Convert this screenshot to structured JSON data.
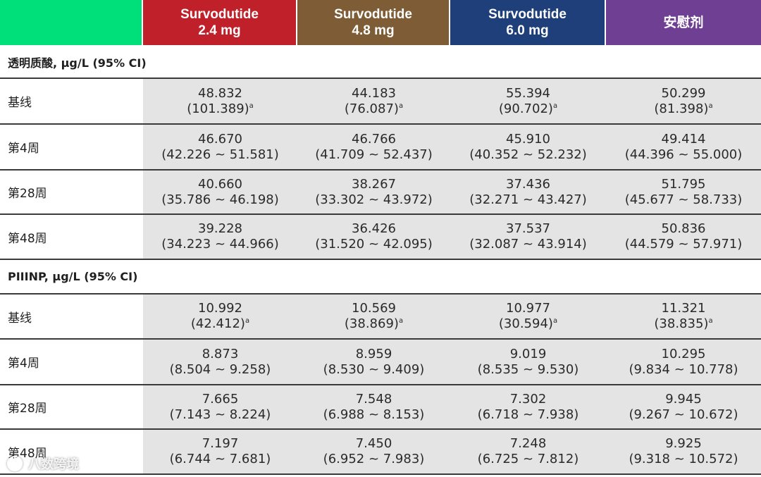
{
  "header": {
    "blank_color": "#00e07a",
    "columns": [
      {
        "line1": "Survodutide",
        "line2": "2.4 mg",
        "color": "#c0202a"
      },
      {
        "line1": "Survodutide",
        "line2": "4.8 mg",
        "color": "#7d5c36"
      },
      {
        "line1": "Survodutide",
        "line2": "6.0 mg",
        "color": "#1f3f7a"
      },
      {
        "line1": "",
        "line2": "安慰剂",
        "color": "#6e3f92"
      }
    ]
  },
  "sections": [
    {
      "title": "透明质酸, μg/L (95% CI)",
      "rows": [
        {
          "label": "基线",
          "values": [
            {
              "main": "48.832",
              "ci": "(101.389)",
              "sup": "a"
            },
            {
              "main": "44.183",
              "ci": "(76.087)",
              "sup": "a"
            },
            {
              "main": "55.394",
              "ci": "(90.702)",
              "sup": "a"
            },
            {
              "main": "50.299",
              "ci": "(81.398)",
              "sup": "a"
            }
          ]
        },
        {
          "label": "第4周",
          "values": [
            {
              "main": "46.670",
              "ci": "(42.226 ~ 51.581)",
              "sup": ""
            },
            {
              "main": "46.766",
              "ci": "(41.709 ~ 52.437)",
              "sup": ""
            },
            {
              "main": "45.910",
              "ci": "(40.352 ~ 52.232)",
              "sup": ""
            },
            {
              "main": "49.414",
              "ci": "(44.396 ~ 55.000)",
              "sup": ""
            }
          ]
        },
        {
          "label": "第28周",
          "values": [
            {
              "main": "40.660",
              "ci": "(35.786 ~ 46.198)",
              "sup": ""
            },
            {
              "main": "38.267",
              "ci": "(33.302 ~ 43.972)",
              "sup": ""
            },
            {
              "main": "37.436",
              "ci": "(32.271 ~ 43.427)",
              "sup": ""
            },
            {
              "main": "51.795",
              "ci": "(45.677 ~ 58.733)",
              "sup": ""
            }
          ]
        },
        {
          "label": "第48周",
          "values": [
            {
              "main": "39.228",
              "ci": "(34.223 ~ 44.966)",
              "sup": ""
            },
            {
              "main": "36.426",
              "ci": "(31.520 ~ 42.095)",
              "sup": ""
            },
            {
              "main": "37.537",
              "ci": "(32.087 ~ 43.914)",
              "sup": ""
            },
            {
              "main": "50.836",
              "ci": "(44.579 ~ 57.971)",
              "sup": ""
            }
          ]
        }
      ]
    },
    {
      "title": "PIIINP, μg/L (95% CI)",
      "rows": [
        {
          "label": "基线",
          "values": [
            {
              "main": "10.992",
              "ci": "(42.412)",
              "sup": "a"
            },
            {
              "main": "10.569",
              "ci": "(38.869)",
              "sup": "a"
            },
            {
              "main": "10.977",
              "ci": "(30.594)",
              "sup": "a"
            },
            {
              "main": "11.321",
              "ci": "(38.835)",
              "sup": "a"
            }
          ]
        },
        {
          "label": "第4周",
          "values": [
            {
              "main": "8.873",
              "ci": "(8.504 ~ 9.258)",
              "sup": ""
            },
            {
              "main": "8.959",
              "ci": "(8.530 ~ 9.409)",
              "sup": ""
            },
            {
              "main": "9.019",
              "ci": "(8.535 ~ 9.530)",
              "sup": ""
            },
            {
              "main": "10.295",
              "ci": "(9.834 ~ 10.778)",
              "sup": ""
            }
          ]
        },
        {
          "label": "第28周",
          "values": [
            {
              "main": "7.665",
              "ci": "(7.143 ~ 8.224)",
              "sup": ""
            },
            {
              "main": "7.548",
              "ci": "(6.988 ~ 8.153)",
              "sup": ""
            },
            {
              "main": "7.302",
              "ci": "(6.718 ~ 7.938)",
              "sup": ""
            },
            {
              "main": "9.945",
              "ci": "(9.267 ~ 10.672)",
              "sup": ""
            }
          ]
        },
        {
          "label": "第48周",
          "values": [
            {
              "main": "7.197",
              "ci": "(6.744 ~ 7.681)",
              "sup": ""
            },
            {
              "main": "7.450",
              "ci": "(6.952 ~ 7.983)",
              "sup": ""
            },
            {
              "main": "7.248",
              "ci": "(6.725 ~ 7.812)",
              "sup": ""
            },
            {
              "main": "9.925",
              "ci": "(9.318 ~ 10.572)",
              "sup": ""
            }
          ]
        }
      ]
    }
  ],
  "watermark": {
    "text": "八数跨境",
    "icon": "circle-logo-icon"
  }
}
